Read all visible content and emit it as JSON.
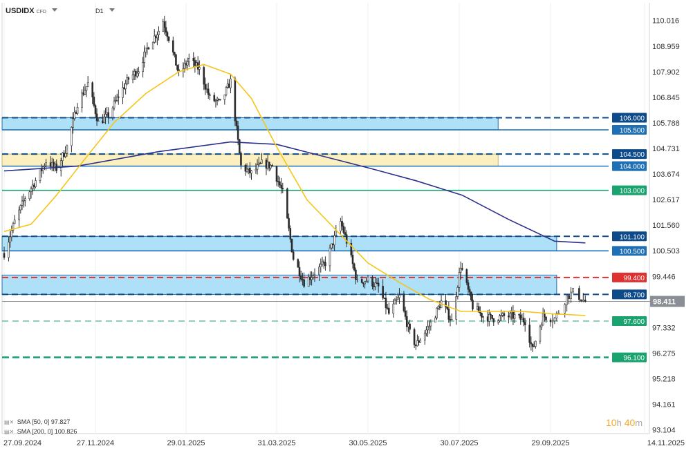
{
  "header": {
    "symbol": "USDIDX",
    "instrument_type": "CFD",
    "timeframe": "D1"
  },
  "legend": [
    {
      "label": "SMA [50, 0]",
      "value": "97.827",
      "color": "#f5c518"
    },
    {
      "label": "SMA [200, 0]",
      "value": "100.826",
      "color": "#2b2f8c"
    }
  ],
  "timer": {
    "hours": "10",
    "hours_unit": "h",
    "minutes": "40",
    "minutes_unit": "m"
  },
  "chart_data": {
    "type": "candlestick",
    "y_ticks": [
      110.016,
      108.959,
      107.902,
      106.845,
      105.788,
      104.731,
      103.674,
      102.617,
      101.56,
      100.503,
      99.446,
      98.389,
      97.332,
      96.275,
      95.218,
      94.161,
      93.104
    ],
    "y_tick_labels": [
      "110.016",
      "108.959",
      "107.902",
      "106.845",
      "105.788",
      "104.731",
      "103.674",
      "102.617",
      "101.560",
      "100.503",
      "99.446",
      "98.389",
      "97.332",
      "96.275",
      "95.218",
      "94.161",
      "93.104"
    ],
    "ylim": [
      92.95,
      110.75
    ],
    "x_tick_labels": [
      "27.09.2024",
      "27.11.2024",
      "29.01.2025",
      "31.03.2025",
      "30.05.2025",
      "30.07.2025",
      "29.09.2025",
      "14.11.2025"
    ],
    "current_price": {
      "value": 98.411,
      "label": "98.411"
    },
    "levels": [
      {
        "value": 106.0,
        "label": "106.000",
        "style": "dashed",
        "color": "#0d4a8a",
        "text_color": "#ffffff"
      },
      {
        "value": 105.5,
        "label": "105.500",
        "style": "solid",
        "color": "#1f6fb5",
        "text_color": "#ffffff"
      },
      {
        "value": 104.5,
        "label": "104.500",
        "style": "dashed",
        "color": "#0d4a8a",
        "text_color": "#ffffff"
      },
      {
        "value": 104.0,
        "label": "104.000",
        "style": "solid",
        "color": "#1f6fb5",
        "text_color": "#ffffff"
      },
      {
        "value": 103.0,
        "label": "103.000",
        "style": "solid",
        "color": "#1aa36f",
        "text_color": "#ffffff"
      },
      {
        "value": 101.1,
        "label": "101.100",
        "style": "dashed",
        "color": "#0d4a8a",
        "text_color": "#ffffff"
      },
      {
        "value": 100.5,
        "label": "100.500",
        "style": "solid",
        "color": "#1f6fb5",
        "text_color": "#ffffff"
      },
      {
        "value": 99.4,
        "label": "99.400",
        "style": "dashed",
        "color": "#e03131",
        "text_color": "#ffffff"
      },
      {
        "value": 98.7,
        "label": "98.700",
        "style": "dashed",
        "color": "#0d4a8a",
        "text_color": "#ffffff"
      },
      {
        "value": 97.6,
        "label": "97.600",
        "style": "dashed-thin",
        "color": "#1aa36f",
        "text_color": "#ffffff"
      },
      {
        "value": 96.1,
        "label": "96.100",
        "style": "dashed-thick",
        "color": "#1aa36f",
        "text_color": "#ffffff"
      }
    ],
    "zones": [
      {
        "low": 105.5,
        "high": 106.0,
        "color": "#aee0f8",
        "border": "#1f6fb5",
        "end": "2025-08-25"
      },
      {
        "low": 104.0,
        "high": 104.5,
        "color": "#fcefc0",
        "border": "#c8b36a",
        "end": "2025-08-25"
      },
      {
        "low": 100.5,
        "high": 101.1,
        "color": "#aee0f8",
        "border": "#1f6fb5",
        "end": "2025-10-02"
      },
      {
        "low": 98.7,
        "high": 99.5,
        "color": "#aee0f8",
        "border": "#1f6fb5",
        "end": "2025-10-02"
      }
    ],
    "close_path": [
      [
        "2024-09-27",
        100.4
      ],
      [
        "2024-10-04",
        101.7
      ],
      [
        "2024-10-11",
        102.7
      ],
      [
        "2024-10-18",
        103.4
      ],
      [
        "2024-10-25",
        104.2
      ],
      [
        "2024-11-01",
        103.9
      ],
      [
        "2024-11-08",
        104.8
      ],
      [
        "2024-11-15",
        106.6
      ],
      [
        "2024-11-22",
        107.4
      ],
      [
        "2024-11-29",
        105.8
      ],
      [
        "2024-12-06",
        106.1
      ],
      [
        "2024-12-13",
        106.9
      ],
      [
        "2024-12-20",
        107.6
      ],
      [
        "2024-12-27",
        108.0
      ],
      [
        "2025-01-03",
        109.0
      ],
      [
        "2025-01-10",
        109.6
      ],
      [
        "2025-01-13",
        110.0
      ],
      [
        "2025-01-17",
        109.3
      ],
      [
        "2025-01-24",
        107.8
      ],
      [
        "2025-01-31",
        108.4
      ],
      [
        "2025-02-07",
        108.0
      ],
      [
        "2025-02-14",
        106.8
      ],
      [
        "2025-02-21",
        106.6
      ],
      [
        "2025-02-28",
        107.5
      ],
      [
        "2025-03-07",
        104.0
      ],
      [
        "2025-03-14",
        103.7
      ],
      [
        "2025-03-21",
        104.1
      ],
      [
        "2025-03-28",
        104.0
      ],
      [
        "2025-04-04",
        102.9
      ],
      [
        "2025-04-11",
        100.2
      ],
      [
        "2025-04-18",
        99.2
      ],
      [
        "2025-04-25",
        99.6
      ],
      [
        "2025-05-02",
        100.0
      ],
      [
        "2025-05-12",
        101.7
      ],
      [
        "2025-05-16",
        100.9
      ],
      [
        "2025-05-23",
        99.2
      ],
      [
        "2025-05-30",
        99.3
      ],
      [
        "2025-06-06",
        99.0
      ],
      [
        "2025-06-13",
        97.9
      ],
      [
        "2025-06-20",
        98.6
      ],
      [
        "2025-06-27",
        97.1
      ],
      [
        "2025-07-01",
        96.6
      ],
      [
        "2025-07-11",
        97.5
      ],
      [
        "2025-07-18",
        98.4
      ],
      [
        "2025-07-25",
        97.6
      ],
      [
        "2025-07-31",
        99.9
      ],
      [
        "2025-08-08",
        98.2
      ],
      [
        "2025-08-15",
        97.8
      ],
      [
        "2025-08-22",
        97.7
      ],
      [
        "2025-08-29",
        97.8
      ],
      [
        "2025-09-05",
        97.8
      ],
      [
        "2025-09-12",
        97.6
      ],
      [
        "2025-09-17",
        96.4
      ],
      [
        "2025-09-24",
        97.8
      ],
      [
        "2025-10-01",
        97.7
      ],
      [
        "2025-10-07",
        98.6
      ],
      [
        "2025-10-10",
        98.8
      ],
      [
        "2025-10-16",
        98.4
      ]
    ],
    "sma50_path": [
      [
        "2024-09-27",
        101.3
      ],
      [
        "2024-10-15",
        101.6
      ],
      [
        "2024-11-01",
        102.8
      ],
      [
        "2024-11-20",
        104.3
      ],
      [
        "2024-12-10",
        105.8
      ],
      [
        "2025-01-01",
        107.0
      ],
      [
        "2025-01-24",
        107.9
      ],
      [
        "2025-02-10",
        108.2
      ],
      [
        "2025-02-28",
        107.8
      ],
      [
        "2025-03-14",
        106.8
      ],
      [
        "2025-03-31",
        104.8
      ],
      [
        "2025-04-20",
        102.6
      ],
      [
        "2025-05-10",
        101.3
      ],
      [
        "2025-05-30",
        100.0
      ],
      [
        "2025-06-20",
        99.2
      ],
      [
        "2025-07-10",
        98.5
      ],
      [
        "2025-07-31",
        98.0
      ],
      [
        "2025-08-20",
        98.0
      ],
      [
        "2025-09-10",
        98.0
      ],
      [
        "2025-09-30",
        97.9
      ],
      [
        "2025-10-16",
        97.83
      ]
    ],
    "sma200_path": [
      [
        "2024-09-27",
        103.8
      ],
      [
        "2024-11-15",
        104.0
      ],
      [
        "2025-01-10",
        104.6
      ],
      [
        "2025-02-28",
        105.0
      ],
      [
        "2025-03-31",
        104.9
      ],
      [
        "2025-05-01",
        104.4
      ],
      [
        "2025-06-01",
        103.9
      ],
      [
        "2025-07-01",
        103.4
      ],
      [
        "2025-08-01",
        102.8
      ],
      [
        "2025-09-01",
        101.8
      ],
      [
        "2025-10-01",
        100.9
      ],
      [
        "2025-10-16",
        100.83
      ]
    ]
  }
}
